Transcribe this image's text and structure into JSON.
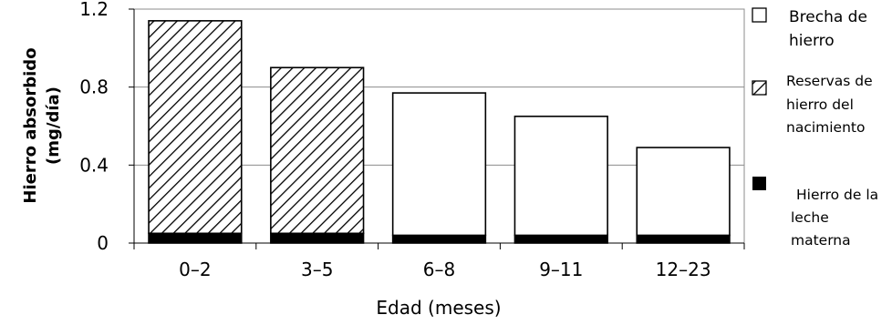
{
  "chart_data": {
    "type": "bar",
    "stacked": true,
    "categories": [
      "0–2",
      "3–5",
      "6–8",
      "9–11",
      "12–23"
    ],
    "series": [
      {
        "name": "Hierro de la leche materna",
        "values": [
          0.05,
          0.05,
          0.04,
          0.04,
          0.04
        ],
        "fill": "solid-black"
      },
      {
        "name": "Reservas de hierro del nacimiento",
        "values": [
          1.09,
          0.85,
          0,
          0,
          0
        ],
        "fill": "diagonal-hatch"
      },
      {
        "name": "Brecha de hierro",
        "values": [
          0,
          0,
          0.73,
          0.61,
          0.45
        ],
        "fill": "white"
      }
    ],
    "xlabel": "Edad (meses)",
    "ylabel": [
      "Hierro absorbido",
      "(mg/día)"
    ],
    "ylim": [
      0,
      1.2
    ],
    "yticks": [
      "0",
      "0.4",
      "0.8",
      "1.2"
    ],
    "ytick_values": [
      0,
      0.4,
      0.8,
      1.2
    ],
    "grid": true,
    "legend_position": "right",
    "legend": [
      {
        "lines": [
          "Brecha de",
          "hierro"
        ],
        "symbol": "white-square",
        "series": "Brecha de hierro"
      },
      {
        "lines": [
          "Reservas de",
          "hierro del",
          "nacimiento"
        ],
        "symbol": "hatched-square",
        "series": "Reservas de hierro del nacimiento"
      },
      {
        "lines": [
          "Hierro de la",
          "leche",
          "materna"
        ],
        "symbol": "black-square",
        "series": "Hierro de la leche materna"
      }
    ]
  }
}
